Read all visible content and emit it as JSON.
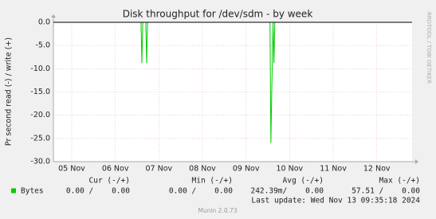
{
  "chart_data": {
    "type": "line",
    "title": "Disk throughput for /dev/sdm - by week",
    "y_label": "Pr second read (-) / write (+)",
    "watermark": "RRDTOOL / TOBI OETIKER",
    "ylim": [
      -30,
      0
    ],
    "yticks": [
      {
        "value": 0,
        "label": "0.0"
      },
      {
        "value": -5,
        "label": "-5.0"
      },
      {
        "value": -10,
        "label": "-10.0"
      },
      {
        "value": -15,
        "label": "-15.0"
      },
      {
        "value": -20,
        "label": "-20.0"
      },
      {
        "value": -25,
        "label": "-25.0"
      },
      {
        "value": -30,
        "label": "-30.0"
      }
    ],
    "xlim": [
      4.58,
      12.81
    ],
    "xticks": [
      {
        "value": 5,
        "label": "05 Nov"
      },
      {
        "value": 6,
        "label": "06 Nov"
      },
      {
        "value": 7,
        "label": "07 Nov"
      },
      {
        "value": 8,
        "label": "08 Nov"
      },
      {
        "value": 9,
        "label": "09 Nov"
      },
      {
        "value": 10,
        "label": "10 Nov"
      },
      {
        "value": 11,
        "label": "11 Nov"
      },
      {
        "value": 12,
        "label": "12 Nov"
      }
    ],
    "grid": true,
    "legend_columns": [
      "Cur (-/+)",
      "Min (-/+)",
      "Avg (-/+)",
      "Max (-/+)"
    ],
    "series": [
      {
        "name": "Bytes",
        "color": "#00cc00",
        "x": [
          4.58,
          6.59,
          6.61,
          6.63,
          6.7,
          6.72,
          6.74,
          9.55,
          9.57,
          9.59,
          9.62,
          9.64,
          9.66,
          12.81
        ],
        "values": [
          0,
          0,
          -8.8,
          0,
          0,
          -8.8,
          0,
          0,
          -26,
          -15,
          0,
          -8.8,
          0,
          0
        ],
        "stats": [
          "0.00 /    0.00",
          "0.00 /    0.00",
          "242.39m/    0.00",
          "57.51 /    0.00"
        ]
      }
    ],
    "last_update": "Last update: Wed Nov 13 09:35:18 2024",
    "footer": "Munin 2.0.73"
  }
}
